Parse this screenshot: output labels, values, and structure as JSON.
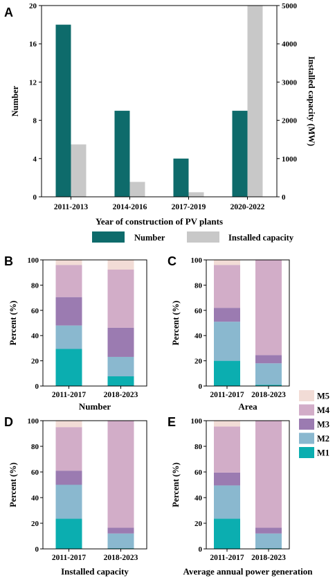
{
  "chart_data": [
    {
      "panel": "A",
      "type": "bar",
      "categories": [
        "2011-2013",
        "2014-2016",
        "2017-2019",
        "2020-2022"
      ],
      "xlabel": "Year of construction of PV plants",
      "ylabel": "Number",
      "ylabel_right": "Installed capacity (MW)",
      "ylim": [
        0,
        20
      ],
      "ylim_right": [
        0,
        5000
      ],
      "yticks": [
        0,
        4,
        8,
        12,
        16,
        20
      ],
      "yticks_right": [
        0,
        1000,
        2000,
        3000,
        4000,
        5000
      ],
      "series": [
        {
          "name": "Number",
          "axis": "left",
          "color": "#0e6b6b",
          "values": [
            18,
            9,
            4,
            9
          ]
        },
        {
          "name": "Installed capacity",
          "axis": "right",
          "color": "#c8c8c8",
          "values": [
            1370,
            390,
            120,
            5000
          ]
        }
      ],
      "legend": "bottom"
    },
    {
      "panel": "B",
      "type": "bar",
      "stacked": true,
      "categories": [
        "2011-2017",
        "2018-2023"
      ],
      "xlabel": "Number",
      "ylabel": "Percent (%)",
      "ylim": [
        0,
        100
      ],
      "yticks": [
        0,
        20,
        40,
        60,
        80,
        100
      ],
      "series": [
        {
          "name": "M1",
          "values": [
            29.4,
            7.7
          ]
        },
        {
          "name": "M2",
          "values": [
            18.6,
            15.4
          ]
        },
        {
          "name": "M3",
          "values": [
            22.5,
            23.1
          ]
        },
        {
          "name": "M4",
          "values": [
            25.5,
            46.1
          ]
        },
        {
          "name": "M5",
          "values": [
            4.0,
            7.7
          ]
        }
      ]
    },
    {
      "panel": "C",
      "type": "bar",
      "stacked": true,
      "categories": [
        "2011-2017",
        "2018-2023"
      ],
      "xlabel": "Area",
      "ylabel": "Percent (%)",
      "ylim": [
        0,
        100
      ],
      "yticks": [
        0,
        20,
        40,
        60,
        80,
        100
      ],
      "series": [
        {
          "name": "M1",
          "values": [
            20.0,
            1.0
          ]
        },
        {
          "name": "M2",
          "values": [
            31.0,
            17.0
          ]
        },
        {
          "name": "M3",
          "values": [
            11.0,
            6.5
          ]
        },
        {
          "name": "M4",
          "values": [
            34.0,
            75.5
          ]
        },
        {
          "name": "M5",
          "values": [
            4.0,
            0.0
          ]
        }
      ]
    },
    {
      "panel": "D",
      "type": "bar",
      "stacked": true,
      "categories": [
        "2011-2017",
        "2018-2023"
      ],
      "xlabel": "Installed capacity",
      "ylabel": "Percent (%)",
      "ylim": [
        0,
        100
      ],
      "yticks": [
        0,
        20,
        40,
        60,
        80,
        100
      ],
      "series": [
        {
          "name": "M1",
          "values": [
            23.5,
            0.5
          ]
        },
        {
          "name": "M2",
          "values": [
            26.5,
            11.5
          ]
        },
        {
          "name": "M3",
          "values": [
            11.0,
            4.5
          ]
        },
        {
          "name": "M4",
          "values": [
            34.0,
            83.5
          ]
        },
        {
          "name": "M5",
          "values": [
            5.0,
            0.0
          ]
        }
      ]
    },
    {
      "panel": "E",
      "type": "bar",
      "stacked": true,
      "categories": [
        "2011-2017",
        "2018-2023"
      ],
      "xlabel": "Average annual power generation",
      "ylabel": "Percent (%)",
      "ylim": [
        0,
        100
      ],
      "yticks": [
        0,
        20,
        40,
        60,
        80,
        100
      ],
      "series": [
        {
          "name": "M1",
          "values": [
            23.5,
            0.5
          ]
        },
        {
          "name": "M2",
          "values": [
            26.0,
            11.5
          ]
        },
        {
          "name": "M3",
          "values": [
            10.0,
            4.5
          ]
        },
        {
          "name": "M4",
          "values": [
            36.0,
            83.5
          ]
        },
        {
          "name": "M5",
          "values": [
            4.5,
            0.0
          ]
        }
      ]
    }
  ],
  "stack_colors": {
    "M1": "#0baeb0",
    "M2": "#8ab8cf",
    "M3": "#9b7bb1",
    "M4": "#d2adc8",
    "M5": "#f2dcd6"
  },
  "stack_legend_order": [
    "M5",
    "M4",
    "M3",
    "M2",
    "M1"
  ]
}
